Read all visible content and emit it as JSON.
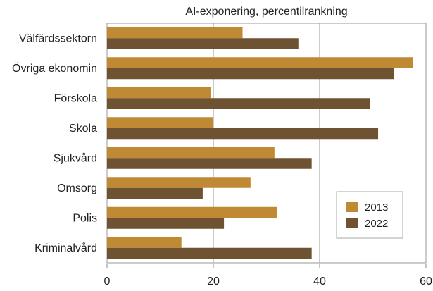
{
  "chart_data": {
    "type": "bar",
    "orientation": "horizontal",
    "title": "AI-exponering, percentilrankning",
    "xlabel": "",
    "ylabel": "",
    "categories": [
      "Välfärdssektorn",
      "Övriga ekonomin",
      "Förskola",
      "Skola",
      "Sjukvård",
      "Omsorg",
      "Polis",
      "Kriminalvård"
    ],
    "series": [
      {
        "name": "2013",
        "color": "#c08a34",
        "values": [
          25.5,
          57.5,
          19.5,
          20,
          31.5,
          27,
          32,
          14
        ]
      },
      {
        "name": "2022",
        "color": "#6e5232",
        "values": [
          36,
          54,
          49.5,
          51,
          38.5,
          18,
          22,
          38.5
        ]
      }
    ],
    "xlim": [
      0,
      60
    ],
    "xticks": [
      "0",
      "20",
      "40",
      "60"
    ],
    "grid": true,
    "legend_position": "right"
  }
}
